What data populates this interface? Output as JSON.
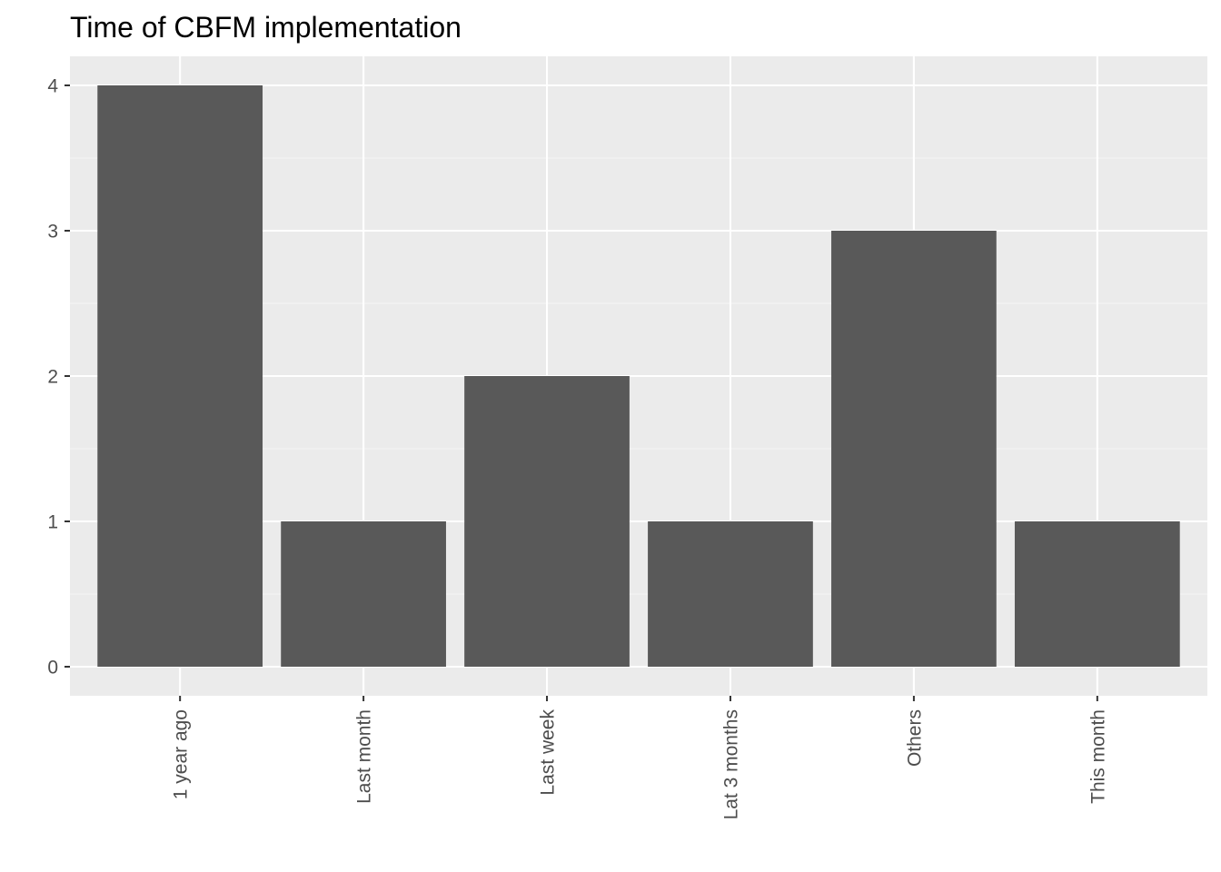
{
  "chart_data": {
    "type": "bar",
    "title": "Time of CBFM implementation",
    "xlabel": "",
    "ylabel": "",
    "categories": [
      "1 year ago",
      "Last month",
      "Last week",
      "Lat 3 months",
      "Others",
      "This month"
    ],
    "values": [
      4,
      1,
      2,
      1,
      3,
      1
    ],
    "ylim": [
      -0.2,
      4.2
    ],
    "yticks": [
      0,
      1,
      2,
      3,
      4
    ],
    "grid": true,
    "legend": "none",
    "x_tick_rotation": "vertical",
    "colors": {
      "bar": "#595959",
      "panel_background": "#ebebeb",
      "grid_major": "#ffffff",
      "grid_minor": "#f5f5f5",
      "tick": "#333333",
      "tick_label": "#4d4d4d",
      "title": "#000000"
    }
  }
}
